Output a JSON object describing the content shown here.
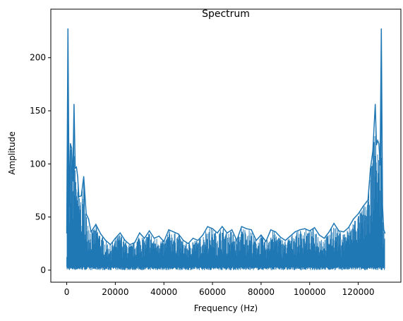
{
  "chart_data": {
    "type": "line",
    "title": "Spectrum",
    "xlabel": "Frequency (Hz)",
    "ylabel": "Amplitude",
    "xlim": [
      -6550,
      137550
    ],
    "ylim": [
      -11.35,
      238.35
    ],
    "xticks": [
      0,
      20000,
      40000,
      60000,
      80000,
      100000,
      120000
    ],
    "xtick_labels": [
      "0",
      "20000",
      "40000",
      "60000",
      "80000",
      "100000",
      "120000"
    ],
    "yticks": [
      0,
      50,
      100,
      150,
      200
    ],
    "ytick_labels": [
      "0",
      "50",
      "100",
      "150",
      "200"
    ],
    "grid": false,
    "line_color": "#1f77b4",
    "series": [
      {
        "x": [
          0,
          500,
          1000,
          1500,
          2000,
          2500,
          3000,
          3500,
          4000,
          4500,
          5000,
          6000,
          7000,
          8000,
          9000,
          10000,
          12000,
          14000,
          16000,
          18000,
          20000,
          22000,
          24000,
          26000,
          28000,
          30000,
          32000,
          34000,
          36000,
          38000,
          40000,
          42000,
          44000,
          46000,
          48000,
          50000,
          52000,
          54000,
          56000,
          58000,
          60000,
          62000,
          64000,
          66000,
          68000,
          70000,
          72000,
          74000,
          76000,
          78000,
          80000,
          82000,
          84000,
          86000,
          88000,
          90000,
          92000,
          94000,
          96000,
          98000,
          100000,
          102000,
          104000,
          106000,
          108000,
          110000,
          112000,
          114000,
          116000,
          118000,
          120000,
          122000,
          124000,
          125000,
          126000,
          127000,
          127500,
          128000,
          128500,
          129000,
          129500,
          130000,
          130500,
          131000
        ],
        "y": [
          35,
          227,
          60,
          119,
          115,
          84,
          156,
          96,
          97,
          88,
          69,
          70,
          88,
          53,
          48,
          36,
          43,
          34,
          28,
          24,
          30,
          35,
          28,
          24,
          26,
          35,
          30,
          37,
          30,
          32,
          27,
          38,
          36,
          34,
          28,
          25,
          30,
          28,
          33,
          41,
          39,
          35,
          41,
          35,
          38,
          28,
          41,
          39,
          38,
          28,
          33,
          27,
          38,
          36,
          31,
          28,
          32,
          36,
          38,
          39,
          37,
          40,
          33,
          30,
          36,
          44,
          37,
          36,
          40,
          48,
          53,
          60,
          66,
          95,
          112,
          156,
          118,
          122,
          119,
          99,
          227,
          60,
          38,
          35
        ]
      }
    ]
  }
}
